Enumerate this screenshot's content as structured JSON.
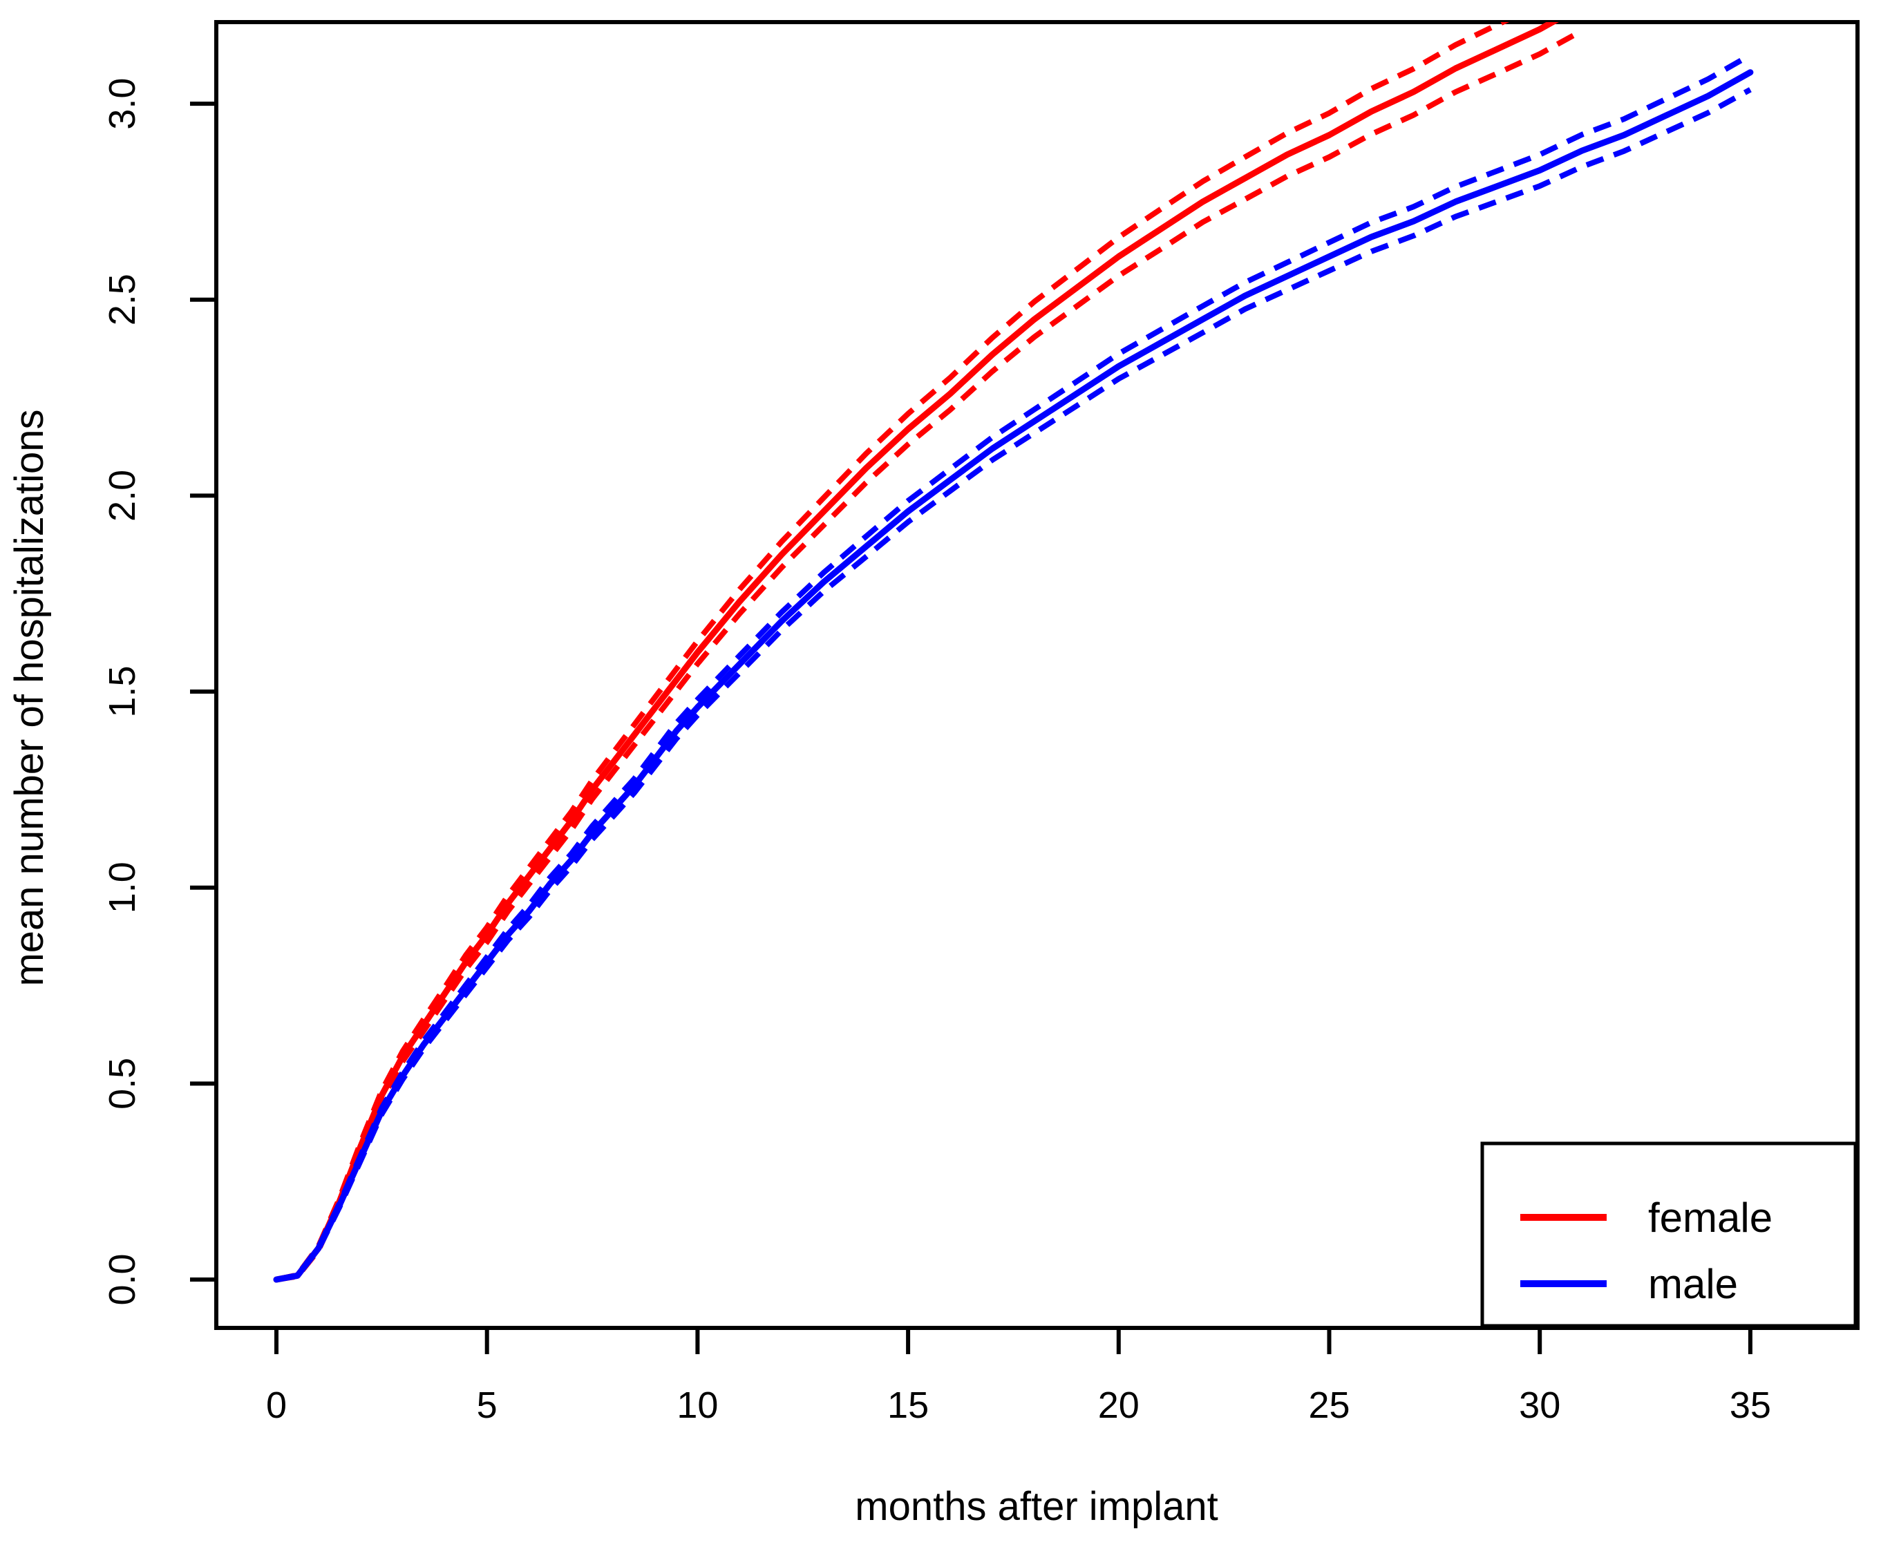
{
  "chart_data": {
    "type": "line",
    "title": "",
    "xlabel": "months after implant",
    "ylabel": "mean number of hospitalizations",
    "x_ticks": [
      0,
      5,
      10,
      15,
      20,
      25,
      30,
      35
    ],
    "y_ticks": [
      "0.0",
      "0.5",
      "1.0",
      "1.5",
      "2.0",
      "2.5",
      "3.0"
    ],
    "y_tick_values": [
      0,
      0.5,
      1.0,
      1.5,
      2.0,
      2.5,
      3.0
    ],
    "xlim": [
      -1.4,
      37.5
    ],
    "ylim": [
      -0.12,
      3.21
    ],
    "grid": "off",
    "ci_style": "dashed",
    "legend": {
      "position": "bottom-right",
      "entries": [
        "female",
        "male"
      ]
    },
    "colors": {
      "female": "#FF0000",
      "male": "#0000FF",
      "axis": "#000000"
    },
    "series": [
      {
        "name": "female",
        "color": "#FF0000",
        "x": [
          0,
          0.5,
          1,
          1.5,
          2,
          2.5,
          3,
          3.5,
          4,
          4.5,
          5,
          5.5,
          6,
          6.5,
          7,
          7.5,
          8,
          8.5,
          9,
          9.5,
          10,
          11,
          12,
          13,
          14,
          15,
          16,
          17,
          18,
          19,
          20,
          21,
          22,
          23,
          24,
          25,
          26,
          27,
          28,
          29,
          30,
          31
        ],
        "y": [
          0,
          0.01,
          0.08,
          0.2,
          0.34,
          0.47,
          0.57,
          0.65,
          0.73,
          0.81,
          0.88,
          0.96,
          1.03,
          1.1,
          1.17,
          1.25,
          1.32,
          1.39,
          1.46,
          1.53,
          1.6,
          1.73,
          1.85,
          1.96,
          2.07,
          2.17,
          2.26,
          2.36,
          2.45,
          2.53,
          2.61,
          2.68,
          2.75,
          2.81,
          2.87,
          2.92,
          2.98,
          3.03,
          3.09,
          3.14,
          3.19,
          3.25
        ],
        "ci_halfwidth": [
          0,
          0.002,
          0.005,
          0.008,
          0.01,
          0.012,
          0.013,
          0.015,
          0.016,
          0.018,
          0.019,
          0.02,
          0.021,
          0.022,
          0.023,
          0.024,
          0.025,
          0.026,
          0.027,
          0.028,
          0.029,
          0.031,
          0.033,
          0.035,
          0.037,
          0.039,
          0.041,
          0.043,
          0.045,
          0.047,
          0.049,
          0.051,
          0.052,
          0.054,
          0.055,
          0.056,
          0.058,
          0.059,
          0.06,
          0.062,
          0.063,
          0.064
        ]
      },
      {
        "name": "male",
        "color": "#0000FF",
        "x": [
          0,
          0.5,
          1,
          1.5,
          2,
          2.5,
          3,
          3.5,
          4,
          4.5,
          5,
          5.5,
          6,
          6.5,
          7,
          7.5,
          8,
          8.5,
          9,
          9.5,
          10,
          11,
          12,
          13,
          14,
          15,
          16,
          17,
          18,
          19,
          20,
          21,
          22,
          23,
          24,
          25,
          26,
          27,
          28,
          29,
          30,
          31,
          32,
          33,
          34,
          35
        ],
        "y": [
          0,
          0.01,
          0.08,
          0.19,
          0.31,
          0.43,
          0.52,
          0.6,
          0.67,
          0.74,
          0.81,
          0.88,
          0.94,
          1.01,
          1.07,
          1.14,
          1.2,
          1.26,
          1.33,
          1.4,
          1.46,
          1.57,
          1.68,
          1.78,
          1.87,
          1.96,
          2.04,
          2.12,
          2.19,
          2.26,
          2.33,
          2.39,
          2.45,
          2.51,
          2.56,
          2.61,
          2.66,
          2.7,
          2.75,
          2.79,
          2.83,
          2.88,
          2.92,
          2.97,
          3.02,
          3.08
        ],
        "ci_halfwidth": [
          0,
          0.001,
          0.003,
          0.005,
          0.007,
          0.008,
          0.009,
          0.01,
          0.011,
          0.012,
          0.013,
          0.014,
          0.015,
          0.016,
          0.016,
          0.017,
          0.018,
          0.018,
          0.019,
          0.02,
          0.02,
          0.022,
          0.023,
          0.024,
          0.026,
          0.027,
          0.028,
          0.029,
          0.03,
          0.031,
          0.032,
          0.033,
          0.034,
          0.034,
          0.035,
          0.036,
          0.037,
          0.037,
          0.038,
          0.039,
          0.04,
          0.041,
          0.041,
          0.042,
          0.043,
          0.044
        ]
      }
    ]
  }
}
